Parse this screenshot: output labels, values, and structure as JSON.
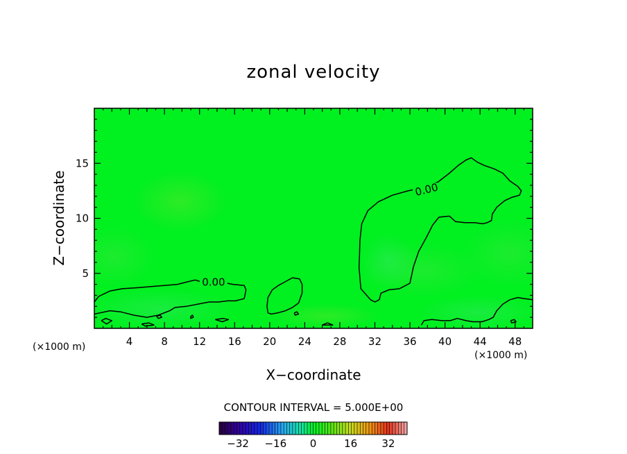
{
  "chart_data": {
    "type": "heatmap",
    "title": "zonal velocity",
    "xlabel": "X−coordinate",
    "ylabel": "Z−coordinate",
    "x_unit_left": "(×1000 m)",
    "x_unit_right": "(×1000 m)",
    "xlim": [
      0,
      50
    ],
    "ylim": [
      0,
      20
    ],
    "x_ticks": [
      4,
      8,
      12,
      16,
      20,
      24,
      28,
      32,
      36,
      40,
      44,
      48
    ],
    "y_ticks": [
      5,
      10,
      15
    ],
    "contour_interval_label": "CONTOUR INTERVAL = 5.000E+00",
    "contour_labels": [
      {
        "text": "0.00",
        "x": 37.9,
        "y": 12.6
      },
      {
        "text": "0.00",
        "x": 13.6,
        "y": 4.2
      }
    ],
    "contour_lines": [
      {
        "name": "upper-right-zero",
        "points": [
          [
            31.5,
            2.6
          ],
          [
            30.4,
            3.6
          ],
          [
            30.2,
            5.5
          ],
          [
            30.3,
            8.0
          ],
          [
            30.5,
            9.5
          ],
          [
            31.2,
            10.7
          ],
          [
            32.4,
            11.5
          ],
          [
            34.0,
            12.1
          ],
          [
            35.8,
            12.5
          ],
          [
            37.5,
            12.8
          ],
          [
            39.2,
            13.3
          ],
          [
            40.5,
            14.1
          ],
          [
            41.5,
            14.8
          ],
          [
            42.4,
            15.3
          ],
          [
            43.0,
            15.5
          ],
          [
            43.7,
            15.1
          ],
          [
            44.5,
            14.8
          ],
          [
            45.6,
            14.5
          ],
          [
            46.6,
            14.1
          ],
          [
            47.4,
            13.4
          ],
          [
            48.3,
            12.9
          ],
          [
            48.7,
            12.5
          ],
          [
            48.5,
            12.1
          ],
          [
            47.6,
            11.9
          ],
          [
            46.8,
            11.6
          ],
          [
            45.9,
            11.0
          ],
          [
            45.4,
            10.4
          ],
          [
            45.3,
            9.8
          ],
          [
            44.8,
            9.6
          ],
          [
            44.3,
            9.5
          ],
          [
            43.4,
            9.6
          ],
          [
            42.3,
            9.6
          ],
          [
            41.2,
            9.7
          ],
          [
            40.5,
            10.2
          ],
          [
            39.3,
            10.1
          ],
          [
            38.6,
            9.4
          ],
          [
            37.9,
            8.3
          ],
          [
            37.0,
            7.0
          ],
          [
            36.4,
            5.6
          ],
          [
            36.0,
            4.1
          ],
          [
            34.8,
            3.6
          ],
          [
            33.6,
            3.5
          ],
          [
            32.7,
            3.2
          ],
          [
            32.5,
            2.6
          ],
          [
            32.0,
            2.4
          ],
          [
            31.5,
            2.6
          ]
        ]
      },
      {
        "name": "lower-left-zero",
        "points": [
          [
            0.0,
            2.4
          ],
          [
            0.5,
            2.9
          ],
          [
            1.8,
            3.4
          ],
          [
            3.2,
            3.6
          ],
          [
            5.0,
            3.7
          ],
          [
            6.5,
            3.8
          ],
          [
            8.0,
            3.9
          ],
          [
            9.5,
            4.0
          ],
          [
            10.5,
            4.2
          ],
          [
            11.5,
            4.4
          ],
          [
            12.3,
            4.2
          ],
          [
            14.5,
            4.2
          ],
          [
            15.8,
            4.0
          ],
          [
            17.1,
            3.9
          ],
          [
            17.3,
            3.5
          ],
          [
            17.1,
            2.7
          ],
          [
            16.1,
            2.5
          ],
          [
            15.2,
            2.5
          ],
          [
            14.2,
            2.4
          ],
          [
            13.1,
            2.4
          ],
          [
            11.8,
            2.2
          ],
          [
            10.5,
            2.0
          ],
          [
            9.2,
            1.9
          ],
          [
            8.6,
            1.6
          ],
          [
            7.3,
            1.2
          ],
          [
            6.0,
            1.0
          ],
          [
            4.5,
            1.2
          ],
          [
            3.0,
            1.5
          ],
          [
            1.8,
            1.6
          ],
          [
            0.6,
            1.4
          ],
          [
            0.0,
            1.3
          ]
        ]
      },
      {
        "name": "middle-blob-zero",
        "points": [
          [
            19.8,
            1.4
          ],
          [
            19.7,
            2.0
          ],
          [
            19.8,
            2.8
          ],
          [
            20.3,
            3.5
          ],
          [
            21.0,
            3.9
          ],
          [
            21.7,
            4.2
          ],
          [
            22.6,
            4.6
          ],
          [
            23.4,
            4.5
          ],
          [
            23.7,
            4.0
          ],
          [
            23.7,
            3.2
          ],
          [
            23.3,
            2.3
          ],
          [
            22.6,
            1.9
          ],
          [
            21.8,
            1.6
          ],
          [
            20.9,
            1.4
          ],
          [
            20.2,
            1.3
          ],
          [
            19.8,
            1.4
          ]
        ]
      },
      {
        "name": "lower-right-zero",
        "points": [
          [
            37.3,
            0.3
          ],
          [
            37.6,
            0.7
          ],
          [
            38.5,
            0.8
          ],
          [
            39.7,
            0.7
          ],
          [
            40.6,
            0.7
          ],
          [
            41.4,
            0.9
          ],
          [
            42.4,
            0.7
          ],
          [
            43.2,
            0.6
          ],
          [
            44.2,
            0.6
          ],
          [
            45.0,
            0.8
          ],
          [
            45.5,
            1.0
          ],
          [
            45.9,
            1.6
          ],
          [
            46.6,
            2.2
          ],
          [
            47.4,
            2.6
          ],
          [
            48.3,
            2.8
          ],
          [
            49.1,
            2.7
          ],
          [
            50.0,
            2.6
          ]
        ]
      },
      {
        "name": "small-loop-1",
        "points": [
          [
            0.8,
            0.7
          ],
          [
            1.3,
            0.9
          ],
          [
            2.0,
            0.7
          ],
          [
            1.4,
            0.4
          ],
          [
            0.8,
            0.7
          ]
        ]
      },
      {
        "name": "small-loop-2",
        "points": [
          [
            5.4,
            0.4
          ],
          [
            6.2,
            0.5
          ],
          [
            6.8,
            0.3
          ],
          [
            5.8,
            0.2
          ],
          [
            5.4,
            0.4
          ]
        ]
      },
      {
        "name": "small-loop-3",
        "points": [
          [
            13.8,
            0.8
          ],
          [
            14.7,
            0.9
          ],
          [
            15.3,
            0.8
          ],
          [
            14.6,
            0.6
          ],
          [
            13.8,
            0.8
          ]
        ]
      },
      {
        "name": "small-loop-4",
        "points": [
          [
            7.1,
            1.1
          ],
          [
            7.5,
            1.2
          ],
          [
            7.7,
            1.0
          ],
          [
            7.3,
            0.9
          ],
          [
            7.1,
            1.1
          ]
        ]
      },
      {
        "name": "small-loop-5",
        "points": [
          [
            11.0,
            1.1
          ],
          [
            11.2,
            1.2
          ],
          [
            11.3,
            1.0
          ],
          [
            11.0,
            0.9
          ],
          [
            11.0,
            1.1
          ]
        ]
      },
      {
        "name": "small-loop-6",
        "points": [
          [
            22.8,
            1.4
          ],
          [
            23.1,
            1.5
          ],
          [
            23.3,
            1.3
          ],
          [
            22.9,
            1.2
          ],
          [
            22.8,
            1.4
          ]
        ]
      },
      {
        "name": "small-loop-7",
        "points": [
          [
            47.5,
            0.7
          ],
          [
            47.9,
            0.8
          ],
          [
            48.1,
            0.6
          ],
          [
            47.6,
            0.5
          ],
          [
            47.5,
            0.7
          ]
        ]
      },
      {
        "name": "small-loop-8",
        "points": [
          [
            26.0,
            0.3
          ],
          [
            26.6,
            0.5
          ],
          [
            27.2,
            0.3
          ],
          [
            26.0,
            0.3
          ]
        ]
      }
    ],
    "colorbar": {
      "ticks": [
        -32,
        -16,
        0,
        16,
        32
      ],
      "range": [
        -40,
        40
      ],
      "bins": 64
    },
    "field_color": "#00f020"
  }
}
